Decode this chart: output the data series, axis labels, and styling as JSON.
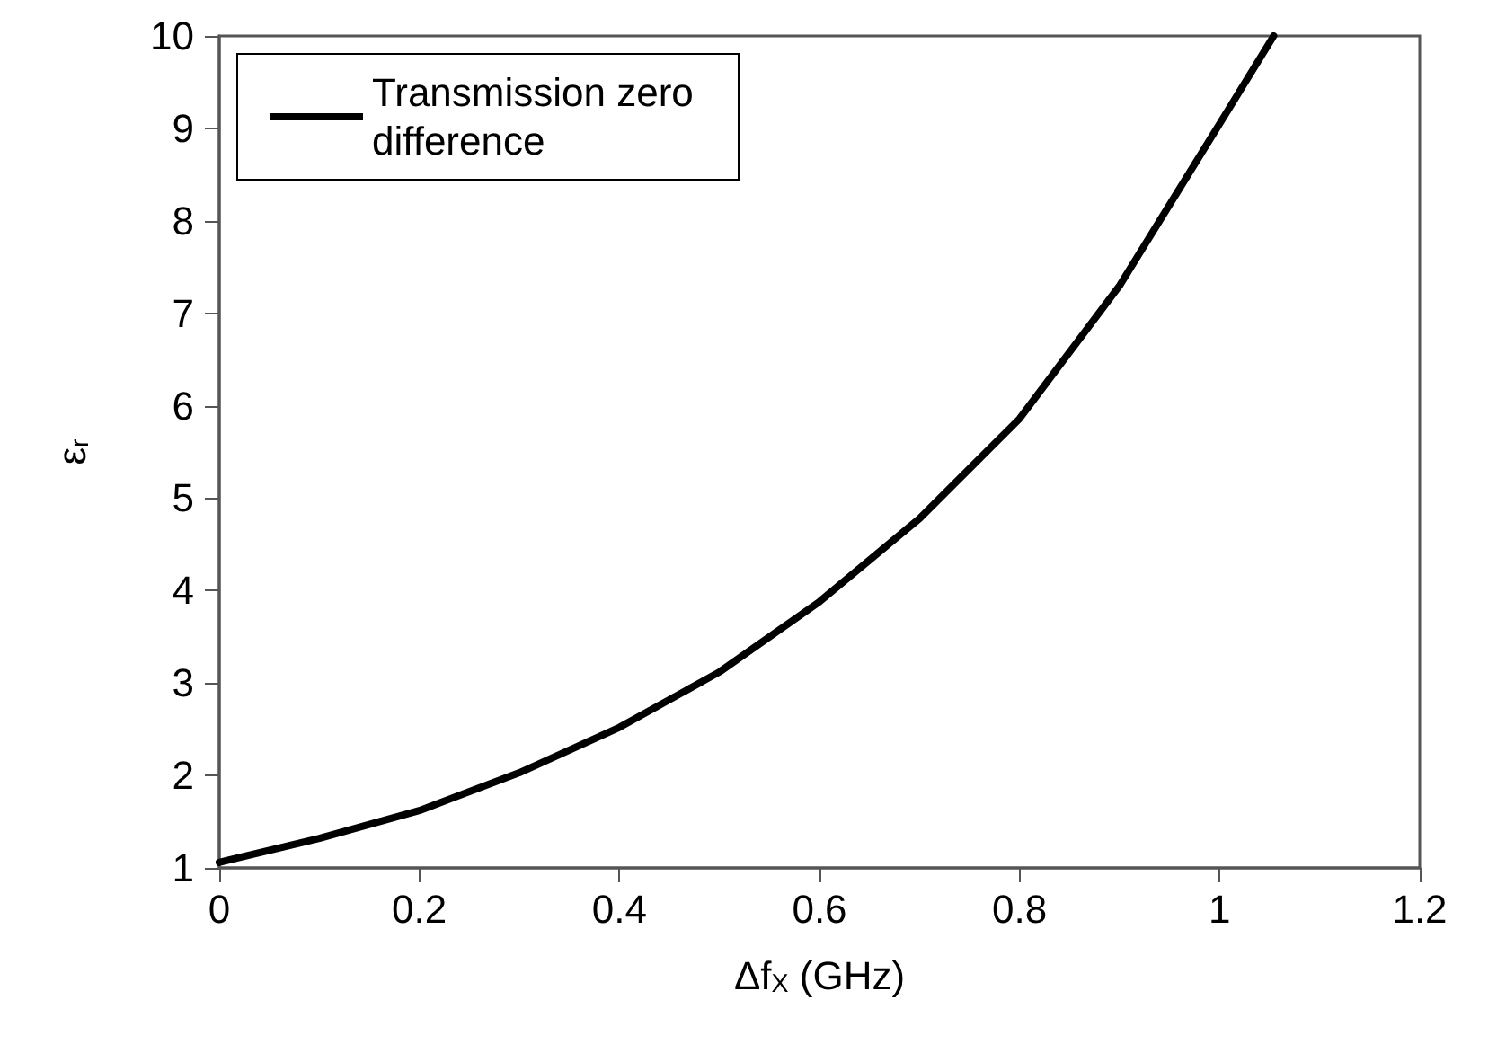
{
  "chart_data": {
    "type": "line",
    "xlabel": "Δf$_{X}$ (GHz)",
    "ylabel": "ε$_{r}$",
    "x": [
      0,
      0.1,
      0.2,
      0.3,
      0.4,
      0.5,
      0.6,
      0.7,
      0.8,
      0.9,
      1.0,
      1.054
    ],
    "series": [
      {
        "name": "Transmission zero difference",
        "color": "#000000",
        "values": [
          1.06,
          1.32,
          1.62,
          2.03,
          2.52,
          3.12,
          3.88,
          4.78,
          5.86,
          7.3,
          9.05,
          10
        ]
      }
    ],
    "xlim": [
      0,
      1.2
    ],
    "xticks": [
      0,
      0.2,
      0.4,
      0.6,
      0.8,
      1,
      1.2
    ],
    "ylim": [
      1,
      10
    ],
    "yticks": [
      1,
      2,
      3,
      4,
      5,
      6,
      7,
      8,
      9,
      10
    ],
    "grid": false,
    "legend": "top left",
    "marker": "none",
    "line_style": "solid"
  }
}
